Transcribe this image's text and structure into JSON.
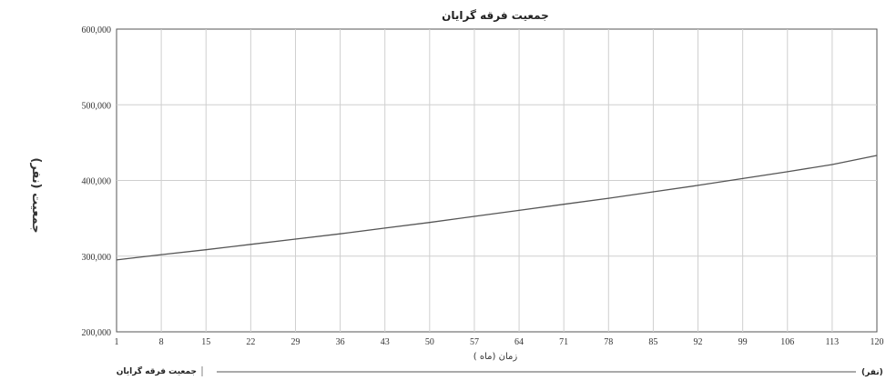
{
  "chart_data": {
    "type": "line",
    "title": "جمعیت فرقه گرایان",
    "xlabel": "زمان (ماه )",
    "ylabel": "جمعیت (نفر)",
    "x_ticks": [
      1,
      8,
      15,
      22,
      29,
      36,
      43,
      50,
      57,
      64,
      71,
      78,
      85,
      92,
      99,
      106,
      113,
      120
    ],
    "y_ticks": [
      200000,
      300000,
      400000,
      500000,
      600000
    ],
    "y_tick_labels": [
      "200,000",
      "300,000",
      "400,000",
      "500,000",
      "600,000"
    ],
    "xlim": [
      1,
      120
    ],
    "ylim": [
      200000,
      600000
    ],
    "grid": true,
    "legend_position": "bottom",
    "series": [
      {
        "name": "جمعیت فرقه گرایان",
        "unit_label": "(نفر)",
        "color": "#555555",
        "x": [
          1,
          8,
          15,
          22,
          29,
          36,
          43,
          50,
          57,
          64,
          71,
          78,
          85,
          92,
          99,
          106,
          113,
          120
        ],
        "values": [
          295000,
          302000,
          308500,
          315500,
          322500,
          329500,
          337000,
          344500,
          352500,
          360500,
          368500,
          376500,
          385000,
          393500,
          402500,
          411500,
          421000,
          433000
        ]
      }
    ]
  }
}
